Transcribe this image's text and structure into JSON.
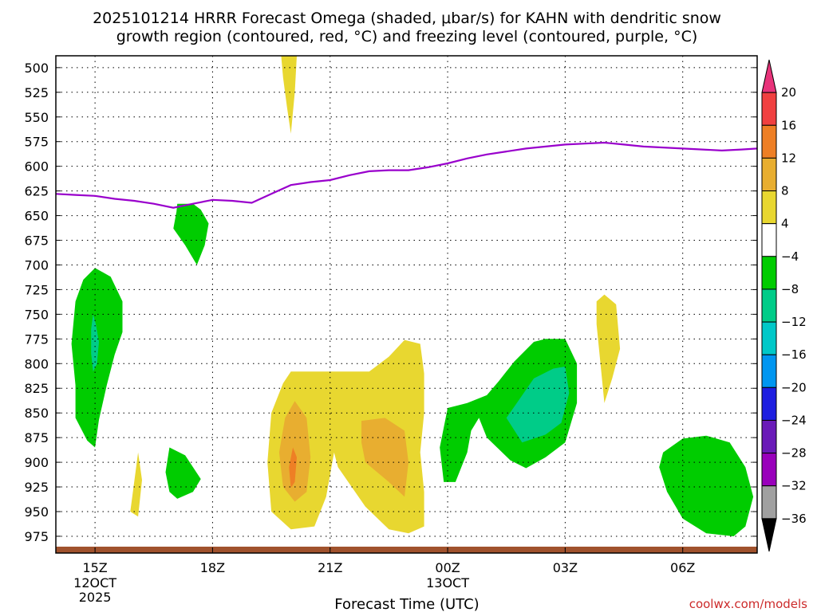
{
  "chart_data": {
    "type": "contour",
    "title_line1": "2025101214 HRRR Forecast Omega (shaded, μbar/s) for KAHN with dendritic snow",
    "title_line2": "growth region (contoured, red, °C) and freezing level (contoured, purple, °C)",
    "xlabel": "Forecast Time (UTC)",
    "credit": "coolwx.com/models",
    "x_ticks": [
      {
        "hour": 15,
        "label": "15Z",
        "sub1": "12OCT",
        "sub2": "2025"
      },
      {
        "hour": 18,
        "label": "18Z",
        "sub1": "",
        "sub2": ""
      },
      {
        "hour": 21,
        "label": "21Z",
        "sub1": "",
        "sub2": ""
      },
      {
        "hour": 24,
        "label": "00Z",
        "sub1": "13OCT",
        "sub2": ""
      },
      {
        "hour": 27,
        "label": "03Z",
        "sub1": "",
        "sub2": ""
      },
      {
        "hour": 30,
        "label": "06Z",
        "sub1": "",
        "sub2": ""
      }
    ],
    "xlim": [
      14,
      31.9
    ],
    "y_ticks": [
      500,
      525,
      550,
      575,
      600,
      625,
      650,
      675,
      700,
      725,
      750,
      775,
      800,
      825,
      850,
      875,
      900,
      925,
      950,
      975
    ],
    "ylim_hPa": [
      488,
      992
    ],
    "y_axis": "pressure (hPa), reversed",
    "grid": true,
    "colorbar": {
      "labels": [
        "20",
        "16",
        "12",
        "8",
        "4",
        "−4",
        "−8",
        "−12",
        "−16",
        "−20",
        "−24",
        "−28",
        "−32",
        "−36"
      ],
      "colors": [
        "#e8337a",
        "#f04040",
        "#ee7f25",
        "#e8ae30",
        "#e8d730",
        "#ffffff",
        "#00cc00",
        "#00cc88",
        "#00c8c8",
        "#0096f0",
        "#1e1ee0",
        "#6a1ab8",
        "#9900bb",
        "#a0a0a0",
        "#000000"
      ]
    },
    "freezing_level": {
      "color": "#9900cc",
      "points": [
        [
          14,
          628
        ],
        [
          14.5,
          629
        ],
        [
          15,
          630
        ],
        [
          15.5,
          633
        ],
        [
          16,
          635
        ],
        [
          16.5,
          638
        ],
        [
          17,
          642
        ],
        [
          17.5,
          638
        ],
        [
          18,
          634
        ],
        [
          18.5,
          635
        ],
        [
          19,
          637
        ],
        [
          19.5,
          628
        ],
        [
          20,
          619
        ],
        [
          20.5,
          616
        ],
        [
          21,
          614
        ],
        [
          21.5,
          609
        ],
        [
          22,
          605
        ],
        [
          22.5,
          604
        ],
        [
          23,
          604
        ],
        [
          23.5,
          601
        ],
        [
          24,
          597
        ],
        [
          24.5,
          592
        ],
        [
          25,
          588
        ],
        [
          25.5,
          585
        ],
        [
          26,
          582
        ],
        [
          26.5,
          580
        ],
        [
          27,
          578
        ],
        [
          27.5,
          577
        ],
        [
          28,
          576
        ],
        [
          28.5,
          578
        ],
        [
          29,
          580
        ],
        [
          29.5,
          581
        ],
        [
          30,
          582
        ],
        [
          30.5,
          583
        ],
        [
          31,
          584
        ],
        [
          31.5,
          583
        ],
        [
          31.9,
          582
        ]
      ]
    },
    "omega_regions": [
      {
        "level": -8,
        "color": "#00cc00",
        "points": [
          [
            15,
            703
          ],
          [
            15.4,
            712
          ],
          [
            15.7,
            737
          ],
          [
            15.7,
            768
          ],
          [
            15.5,
            791
          ],
          [
            15.3,
            822
          ],
          [
            15.1,
            857
          ],
          [
            15,
            885
          ],
          [
            14.8,
            878
          ],
          [
            14.5,
            855
          ],
          [
            14.5,
            822
          ],
          [
            14.4,
            780
          ],
          [
            14.5,
            737
          ],
          [
            14.7,
            715
          ]
        ]
      },
      {
        "level": -12,
        "color": "#00cc88",
        "points": [
          [
            14.95,
            750
          ],
          [
            15.02,
            760
          ],
          [
            15.1,
            778
          ],
          [
            15.05,
            800
          ],
          [
            14.95,
            808
          ],
          [
            14.9,
            790
          ],
          [
            14.9,
            765
          ]
        ]
      },
      {
        "level": -8,
        "color": "#00cc00",
        "points": [
          [
            17.1,
            638
          ],
          [
            17.5,
            638
          ],
          [
            17.7,
            644
          ],
          [
            17.9,
            658
          ],
          [
            17.8,
            680
          ],
          [
            17.6,
            700
          ],
          [
            17.3,
            680
          ],
          [
            17,
            663
          ],
          [
            17.08,
            646
          ]
        ]
      },
      {
        "level": -8,
        "color": "#00cc00",
        "points": [
          [
            16.9,
            885
          ],
          [
            17.3,
            893
          ],
          [
            17.7,
            917
          ],
          [
            17.5,
            930
          ],
          [
            17.1,
            937
          ],
          [
            16.9,
            930
          ],
          [
            16.8,
            910
          ]
        ]
      },
      {
        "level": 4,
        "color": "#e8d730",
        "points": [
          [
            16.1,
            890
          ],
          [
            16.2,
            918
          ],
          [
            16.1,
            955
          ],
          [
            15.9,
            950
          ],
          [
            16,
            920
          ]
        ]
      },
      {
        "level": 4,
        "color": "#e8d730",
        "points": [
          [
            19.75,
            488
          ],
          [
            20.15,
            488
          ],
          [
            20.1,
            525
          ],
          [
            20,
            567
          ],
          [
            19.9,
            540
          ],
          [
            19.8,
            510
          ]
        ]
      },
      {
        "level": 4,
        "color": "#e8d730",
        "points": [
          [
            19.8,
            820
          ],
          [
            20,
            808
          ],
          [
            21,
            808
          ],
          [
            22,
            808
          ],
          [
            22.5,
            793
          ],
          [
            22.9,
            776
          ],
          [
            23.3,
            780
          ],
          [
            23.4,
            810
          ],
          [
            23.4,
            850
          ],
          [
            23.3,
            890
          ],
          [
            23.4,
            930
          ],
          [
            23.4,
            965
          ],
          [
            23,
            972
          ],
          [
            22.5,
            968
          ],
          [
            21.9,
            945
          ],
          [
            21.2,
            905
          ],
          [
            21.1,
            890
          ],
          [
            20.9,
            935
          ],
          [
            20.6,
            965
          ],
          [
            20,
            968
          ],
          [
            19.5,
            950
          ],
          [
            19.4,
            900
          ],
          [
            19.5,
            850
          ]
        ]
      },
      {
        "level": 8,
        "color": "#e8ae30",
        "points": [
          [
            20.1,
            838
          ],
          [
            20.4,
            855
          ],
          [
            20.5,
            895
          ],
          [
            20.4,
            930
          ],
          [
            20.1,
            940
          ],
          [
            19.8,
            925
          ],
          [
            19.7,
            890
          ],
          [
            19.85,
            855
          ]
        ]
      },
      {
        "level": 12,
        "color": "#ee7f25",
        "points": [
          [
            20.05,
            885
          ],
          [
            20.15,
            895
          ],
          [
            20.1,
            920
          ],
          [
            20,
            926
          ],
          [
            19.95,
            905
          ]
        ]
      },
      {
        "level": 8,
        "color": "#e8ae30",
        "points": [
          [
            21.8,
            858
          ],
          [
            22.4,
            855
          ],
          [
            22.9,
            868
          ],
          [
            23,
            900
          ],
          [
            22.9,
            935
          ],
          [
            22.5,
            920
          ],
          [
            21.9,
            900
          ],
          [
            21.8,
            880
          ]
        ]
      },
      {
        "level": -8,
        "color": "#00cc00",
        "points": [
          [
            24,
            845
          ],
          [
            24.5,
            840
          ],
          [
            25,
            832
          ],
          [
            25.3,
            818
          ],
          [
            25.7,
            798
          ],
          [
            26.2,
            778
          ],
          [
            26.5,
            775
          ],
          [
            27,
            775
          ],
          [
            27.3,
            800
          ],
          [
            27.3,
            840
          ],
          [
            27,
            880
          ],
          [
            26.5,
            895
          ],
          [
            26,
            906
          ],
          [
            25.6,
            898
          ],
          [
            25,
            875
          ],
          [
            24.8,
            855
          ],
          [
            24.6,
            868
          ],
          [
            24.5,
            890
          ],
          [
            24.2,
            920
          ],
          [
            23.9,
            920
          ],
          [
            23.8,
            885
          ]
        ]
      },
      {
        "level": -12,
        "color": "#00cc88",
        "points": [
          [
            25.8,
            838
          ],
          [
            26.2,
            815
          ],
          [
            26.7,
            805
          ],
          [
            27,
            803
          ],
          [
            27.1,
            830
          ],
          [
            26.9,
            860
          ],
          [
            26.5,
            872
          ],
          [
            25.9,
            880
          ],
          [
            25.5,
            855
          ]
        ]
      },
      {
        "level": 4,
        "color": "#e8d730",
        "points": [
          [
            28,
            730
          ],
          [
            28.3,
            740
          ],
          [
            28.4,
            785
          ],
          [
            28.2,
            815
          ],
          [
            28.0,
            840
          ],
          [
            27.9,
            800
          ],
          [
            27.8,
            760
          ],
          [
            27.8,
            737
          ]
        ]
      },
      {
        "level": -8,
        "color": "#00cc00",
        "points": [
          [
            29.5,
            890
          ],
          [
            30,
            876
          ],
          [
            30.6,
            873
          ],
          [
            31.2,
            880
          ],
          [
            31.6,
            905
          ],
          [
            31.8,
            935
          ],
          [
            31.6,
            965
          ],
          [
            31.3,
            975
          ],
          [
            30.6,
            972
          ],
          [
            30,
            957
          ],
          [
            29.6,
            930
          ],
          [
            29.4,
            905
          ]
        ]
      }
    ]
  }
}
